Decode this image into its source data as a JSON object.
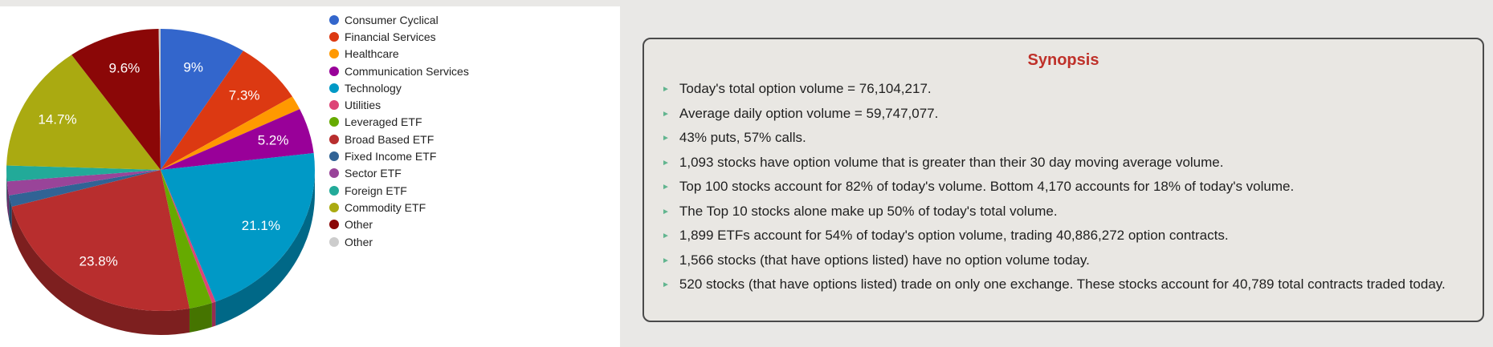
{
  "chart_data": {
    "type": "pie",
    "is3d": true,
    "title": "",
    "legend_position": "right",
    "note": "values for slices without visible labels are estimated from arc size",
    "slices": [
      {
        "label": "Consumer Cyclical",
        "value": 9.0,
        "display": "9%",
        "color": "#3366CC"
      },
      {
        "label": "Financial Services",
        "value": 7.3,
        "display": "7.3%",
        "color": "#DC3912"
      },
      {
        "label": "Healthcare",
        "value": 1.6,
        "display": "",
        "color": "#FF9900"
      },
      {
        "label": "Communication Services",
        "value": 5.2,
        "display": "5.2%",
        "color": "#990099"
      },
      {
        "label": "Technology",
        "value": 21.1,
        "display": "21.1%",
        "color": "#0099C6"
      },
      {
        "label": "Utilities",
        "value": 0.4,
        "display": "",
        "color": "#DD4477"
      },
      {
        "label": "Leveraged ETF",
        "value": 2.4,
        "display": "",
        "color": "#66AA00"
      },
      {
        "label": "Broad Based ETF",
        "value": 23.8,
        "display": "23.8%",
        "color": "#B82E2E"
      },
      {
        "label": "Fixed Income ETF",
        "value": 1.3,
        "display": "",
        "color": "#316395"
      },
      {
        "label": "Sector ETF",
        "value": 1.6,
        "display": "",
        "color": "#994499"
      },
      {
        "label": "Foreign ETF",
        "value": 1.8,
        "display": "",
        "color": "#22AA99"
      },
      {
        "label": "Commodity ETF",
        "value": 14.7,
        "display": "14.7%",
        "color": "#AAAA11"
      },
      {
        "label": "Other",
        "value": 9.6,
        "display": "9.6%",
        "color": "#8B0707"
      },
      {
        "label": "Other",
        "value": 0.2,
        "display": "",
        "color": "#CCCCCC"
      }
    ]
  },
  "synopsis": {
    "title": "Synopsis",
    "title_color": "#bf312a",
    "bullet_glyph": "►",
    "bullet_color": "#62b58f",
    "bullets": [
      "Today's total option volume = 76,104,217.",
      "Average daily option volume = 59,747,077.",
      "43% puts, 57% calls.",
      "1,093 stocks have option volume that is greater than their 30 day moving average volume.",
      "Top 100 stocks account for 82% of today's volume. Bottom 4,170 accounts for 18% of today's volume.",
      "The Top 10 stocks alone make up 50% of today's total volume.",
      "1,899 ETFs account for 54% of today's option volume, trading 40,886,272 option contracts.",
      "1,566 stocks (that have options listed) have no option volume today.",
      "520 stocks (that have options listed) trade on only one exchange. These stocks account for 40,789 total contracts traded today."
    ]
  }
}
